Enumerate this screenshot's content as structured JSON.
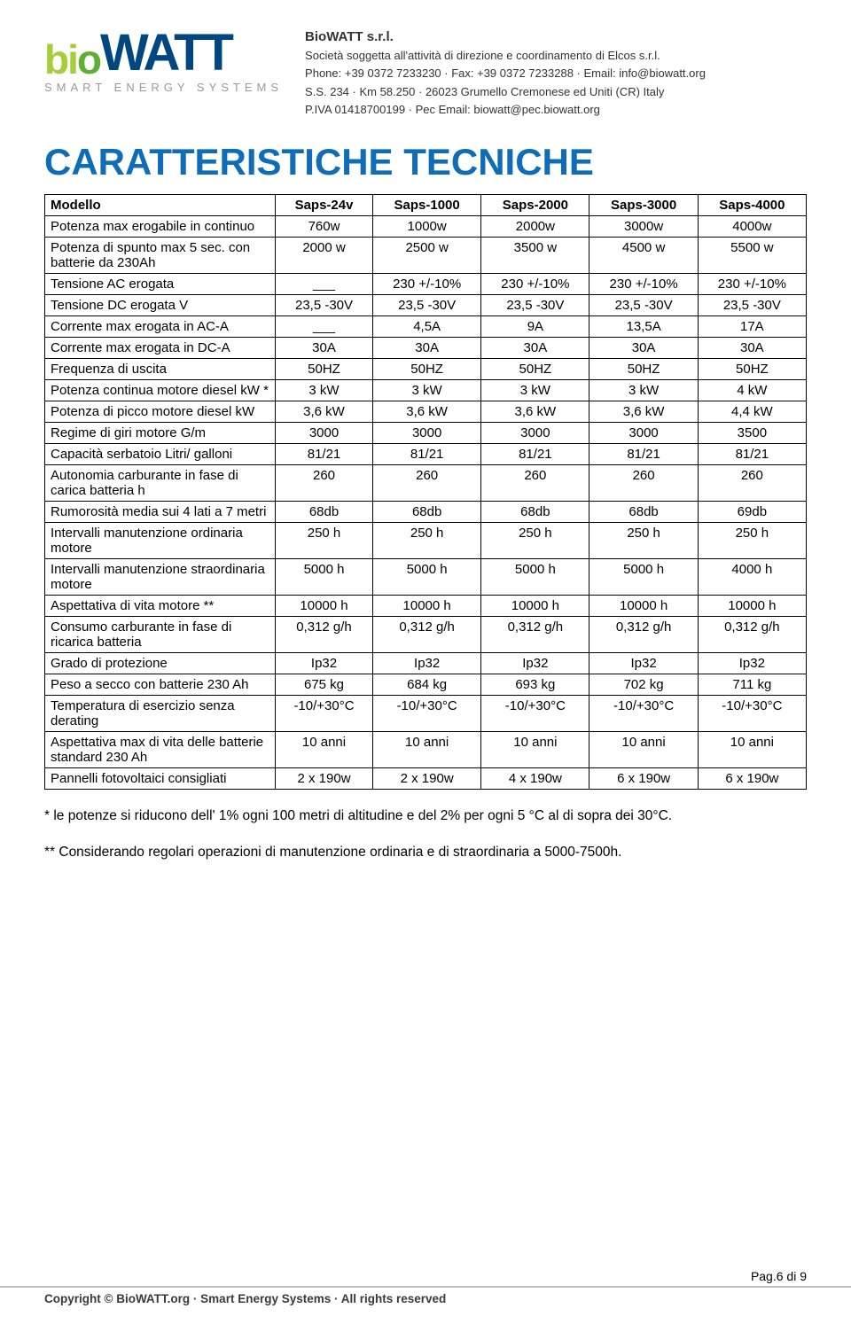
{
  "header": {
    "logo_bio": "bio",
    "logo_watt": "WATT",
    "logo_subtitle": "SMART ENERGY SYSTEMS",
    "company": {
      "name": "BioWATT s.r.l.",
      "line1": "Società soggetta all'attività di direzione e coordinamento di Elcos s.r.l.",
      "line2": "Phone: +39 0372 7233230 · Fax: +39 0372 7233288 · Email: info@biowatt.org",
      "line3": "S.S. 234 · Km 58.250 · 26023 Grumello Cremonese ed Uniti (CR) Italy",
      "line4": "P.IVA 01418700199 · Pec Email: biowatt@pec.biowatt.org"
    }
  },
  "title": "CARATTERISTICHE TECNICHE",
  "table": {
    "columns": [
      "Modello",
      "Saps-24v",
      "Saps-1000",
      "Saps-2000",
      "Saps-3000",
      "Saps-4000"
    ],
    "rows": [
      {
        "label": "Potenza max erogabile in continuo",
        "cells": [
          "760w",
          "1000w",
          "2000w",
          "3000w",
          "4000w"
        ]
      },
      {
        "label": "Potenza di spunto max 5 sec. con batterie da 230Ah",
        "cells": [
          "2000 w",
          "2500 w",
          "3500 w",
          "4500 w",
          "5500 w"
        ]
      },
      {
        "label": "Tensione  AC erogata",
        "cells": [
          "___",
          "230 +/-10%",
          "230 +/-10%",
          "230 +/-10%",
          "230 +/-10%"
        ]
      },
      {
        "label": "Tensione  DC erogata V",
        "cells": [
          "23,5 -30V",
          "23,5 -30V",
          "23,5 -30V",
          "23,5 -30V",
          "23,5 -30V"
        ]
      },
      {
        "label": "Corrente  max erogata in AC-A",
        "cells": [
          "___",
          "4,5A",
          "9A",
          "13,5A",
          "17A"
        ]
      },
      {
        "label": "Corrente  max erogata in DC-A",
        "cells": [
          "30A",
          "30A",
          "30A",
          "30A",
          "30A"
        ]
      },
      {
        "label": "Frequenza di uscita",
        "cells": [
          "50HZ",
          "50HZ",
          "50HZ",
          "50HZ",
          "50HZ"
        ]
      },
      {
        "label": "Potenza continua motore diesel   kW *",
        "cells": [
          "3 kW",
          "3 kW",
          "3 kW",
          "3 kW",
          "4 kW"
        ]
      },
      {
        "label": "Potenza di picco  motore diesel kW",
        "cells": [
          "3,6 kW",
          "3,6 kW",
          "3,6 kW",
          "3,6 kW",
          "4,4 kW"
        ]
      },
      {
        "label": "Regime di giri motore G/m",
        "cells": [
          "3000",
          "3000",
          "3000",
          "3000",
          "3500"
        ]
      },
      {
        "label": "Capacità serbatoio Litri/ galloni",
        "cells": [
          "81/21",
          "81/21",
          "81/21",
          "81/21",
          "81/21"
        ]
      },
      {
        "label": "Autonomia carburante in fase di carica batteria h",
        "cells": [
          "260",
          "260",
          "260",
          "260",
          "260"
        ]
      },
      {
        "label": "Rumorosità media sui 4 lati a 7 metri",
        "cells": [
          "68db",
          "68db",
          "68db",
          "68db",
          "69db"
        ]
      },
      {
        "label": "Intervalli manutenzione ordinaria motore",
        "cells": [
          "250 h",
          "250 h",
          "250 h",
          "250 h",
          "250 h"
        ]
      },
      {
        "label": "Intervalli manutenzione straordinaria motore",
        "cells": [
          "5000 h",
          "5000 h",
          "5000 h",
          "5000 h",
          "4000 h"
        ]
      },
      {
        "label": "Aspettativa di vita motore **",
        "cells": [
          "10000 h",
          "10000 h",
          "10000 h",
          "10000 h",
          "10000 h"
        ]
      },
      {
        "label": "Consumo carburante in fase di ricarica batteria",
        "cells": [
          "0,312 g/h",
          "0,312 g/h",
          "0,312 g/h",
          "0,312 g/h",
          "0,312 g/h"
        ]
      },
      {
        "label": "Grado di protezione",
        "cells": [
          "Ip32",
          "Ip32",
          "Ip32",
          "Ip32",
          "Ip32"
        ]
      },
      {
        "label": "Peso a secco con batterie 230 Ah",
        "cells": [
          "675 kg",
          "684 kg",
          "693 kg",
          "702 kg",
          "711 kg"
        ]
      },
      {
        "label": "Temperatura di esercizio senza derating",
        "cells": [
          "-10/+30°C",
          "-10/+30°C",
          "-10/+30°C",
          "-10/+30°C",
          "-10/+30°C"
        ]
      },
      {
        "label": "Aspettativa max di vita delle batterie standard 230 Ah",
        "cells": [
          "10 anni",
          "10 anni",
          "10 anni",
          "10 anni",
          "10 anni"
        ]
      },
      {
        "label": "Pannelli fotovoltaici consigliati",
        "cells": [
          "2 x 190w",
          "2 x 190w",
          "4 x 190w",
          "6 x 190w",
          "6 x 190w"
        ]
      }
    ]
  },
  "notes": {
    "note1": "* le potenze si riducono dell' 1% ogni 100 metri di altitudine e del 2%  per ogni 5 °C al di sopra dei 30°C.",
    "note2": "** Considerando regolari operazioni di manutenzione ordinaria e di straordinaria a 5000-7500h."
  },
  "footer": {
    "page": "Pag.6 di 9",
    "copyright": "Copyright © BioWATT.org · Smart Energy Systems · All rights reserved"
  },
  "style": {
    "title_color": "#0f6db8",
    "logo_green_light": "#a6ce39",
    "logo_green_dark": "#5eb030",
    "logo_blue": "#00467f",
    "grey": "#9a9a9a",
    "border_color": "#000000",
    "background": "#ffffff",
    "body_font_size": 15,
    "title_font_size": 42
  }
}
